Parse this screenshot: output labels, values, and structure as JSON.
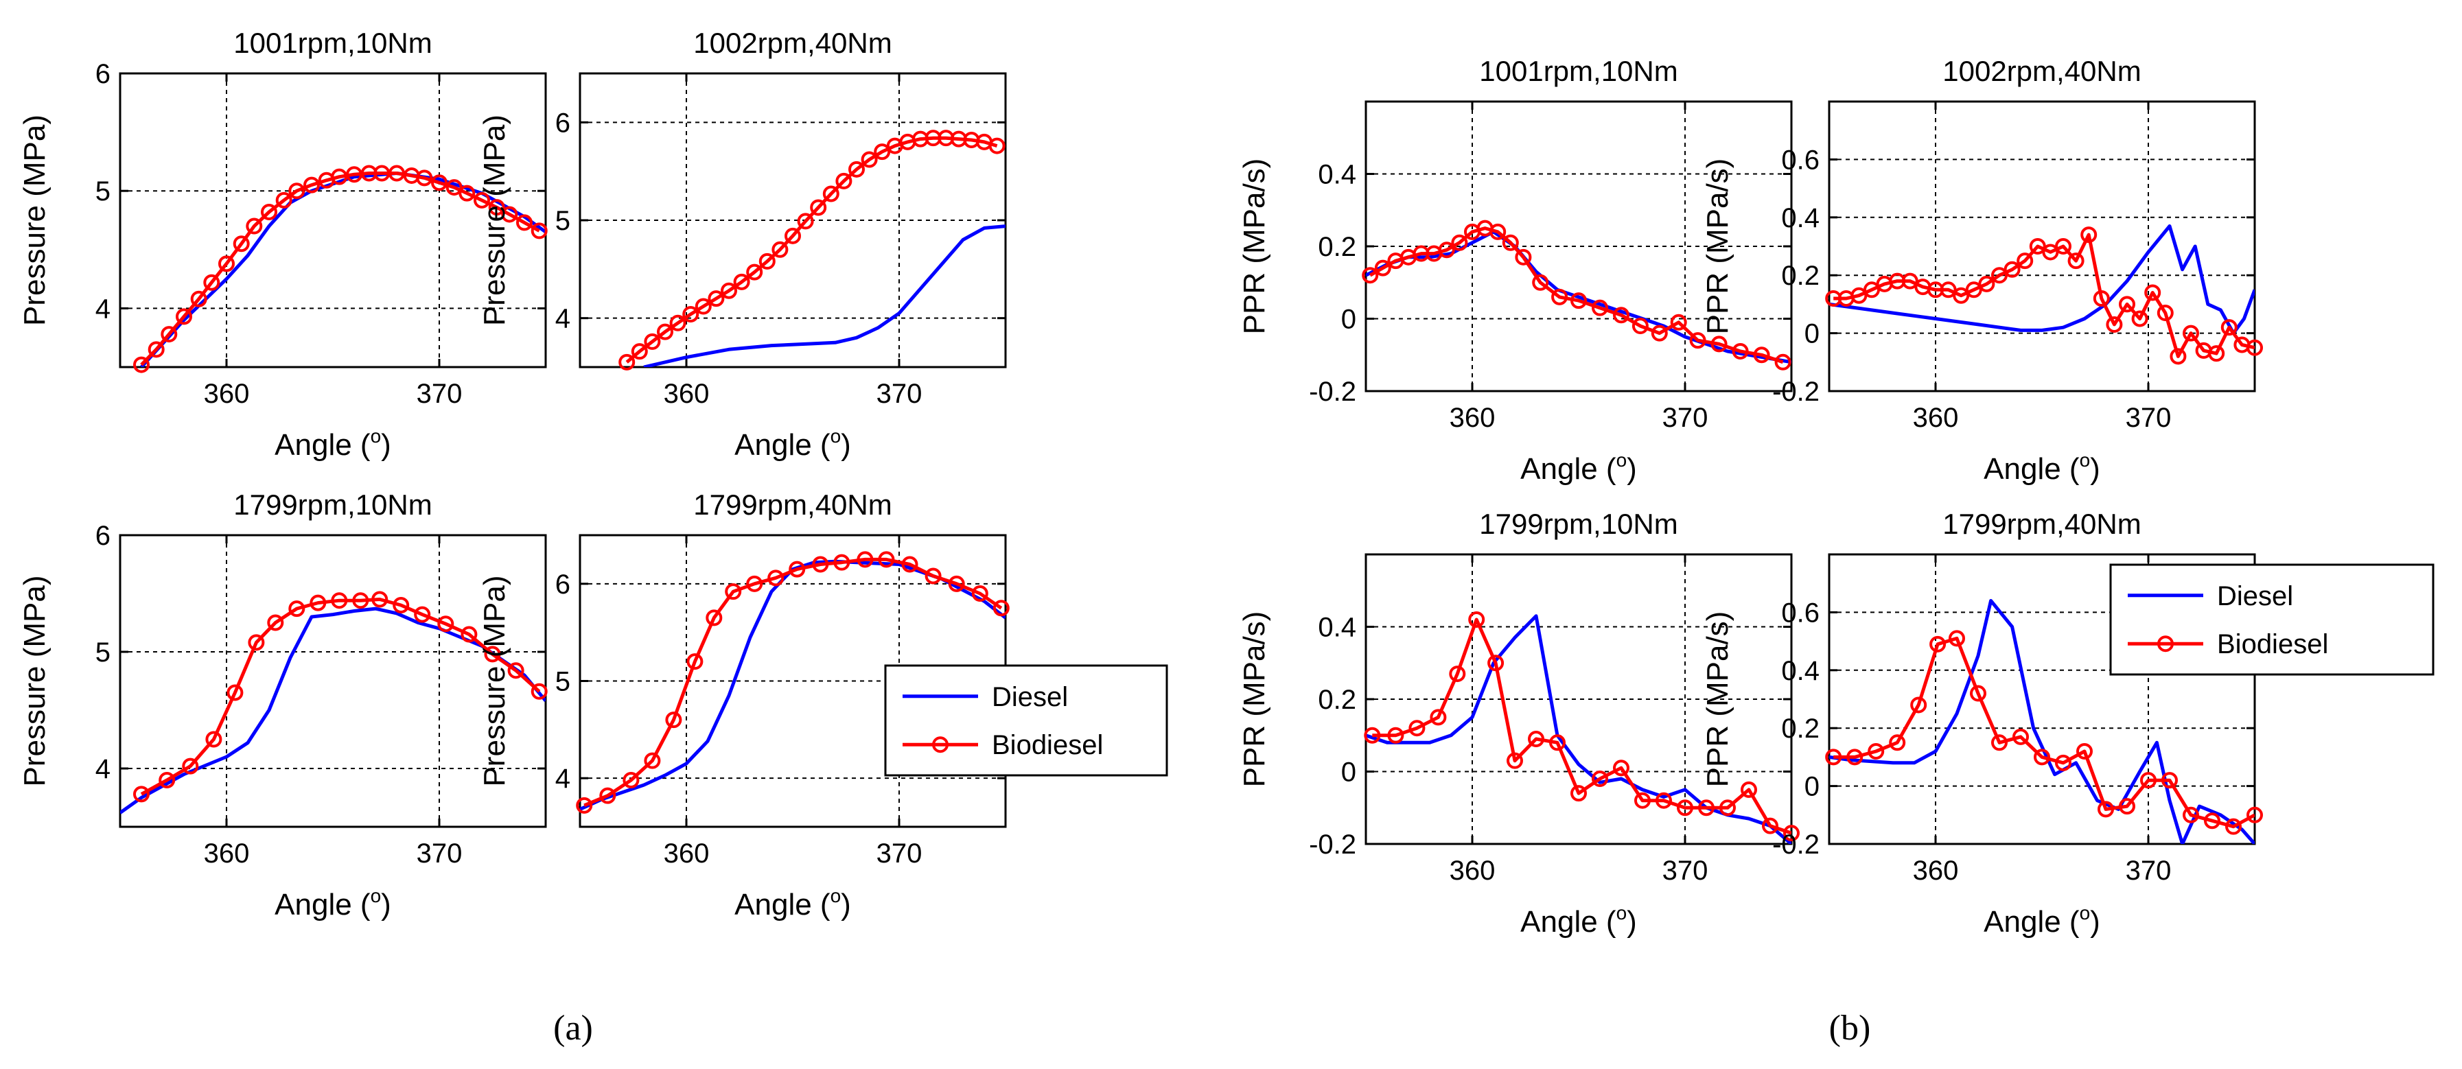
{
  "colors": {
    "diesel": "#0000ff",
    "biodiesel": "#ff0000",
    "grid": "#000000"
  },
  "figure_labels": {
    "a": "(a)",
    "b": "(b)"
  },
  "legend": {
    "diesel": "Diesel",
    "biodiesel": "Biodiesel"
  },
  "chart_data": [
    {
      "id": "a1",
      "type": "line",
      "title": "1001rpm,10Nm",
      "xlabel": "Angle",
      "xlabel_sup": "o",
      "ylabel": "Pressure (MPa)",
      "xlim": [
        355,
        375
      ],
      "ylim": [
        3.5,
        6
      ],
      "xticks": [
        360,
        370
      ],
      "yticks": [
        4,
        5,
        6
      ],
      "ygrid": [
        4,
        5,
        6
      ],
      "xgrid": [
        360,
        370
      ],
      "series": [
        {
          "name": "Diesel",
          "x": [
            356,
            358,
            360,
            361,
            362,
            363,
            364,
            366,
            368,
            370,
            372,
            374,
            375
          ],
          "y": [
            3.5,
            3.9,
            4.25,
            4.45,
            4.7,
            4.9,
            5.0,
            5.12,
            5.15,
            5.1,
            4.98,
            4.78,
            4.65
          ]
        },
        {
          "name": "Biodiesel",
          "x": [
            356,
            356.7,
            357.3,
            358,
            358.7,
            359.3,
            360,
            360.7,
            361.3,
            362,
            362.7,
            363.3,
            364,
            364.7,
            365.3,
            366,
            366.7,
            367.3,
            368,
            368.7,
            369.3,
            370,
            370.7,
            371.3,
            372,
            372.7,
            373.3,
            374,
            374.7
          ],
          "y": [
            3.52,
            3.65,
            3.78,
            3.93,
            4.08,
            4.22,
            4.38,
            4.55,
            4.7,
            4.82,
            4.92,
            5.0,
            5.05,
            5.09,
            5.12,
            5.14,
            5.15,
            5.15,
            5.15,
            5.13,
            5.11,
            5.07,
            5.03,
            4.98,
            4.92,
            4.86,
            4.8,
            4.73,
            4.66
          ]
        }
      ]
    },
    {
      "id": "a2",
      "type": "line",
      "title": "1002rpm,40Nm",
      "xlabel": "Angle",
      "xlabel_sup": "o",
      "ylabel": "Pressure (MPa)",
      "xlim": [
        355,
        375
      ],
      "ylim": [
        3.5,
        6.5
      ],
      "xticks": [
        360,
        370
      ],
      "yticks": [
        4,
        5,
        6
      ],
      "ygrid": [
        4,
        5,
        6
      ],
      "xgrid": [
        360,
        370
      ],
      "series": [
        {
          "name": "Diesel",
          "x": [
            358,
            360,
            362,
            364,
            366,
            367,
            368,
            369,
            370,
            371,
            372,
            373,
            374,
            375
          ],
          "y": [
            3.5,
            3.6,
            3.68,
            3.72,
            3.74,
            3.75,
            3.8,
            3.9,
            4.05,
            4.3,
            4.55,
            4.8,
            4.92,
            4.94
          ]
        },
        {
          "name": "Biodiesel",
          "x": [
            357.2,
            357.8,
            358.4,
            359,
            359.6,
            360.2,
            360.8,
            361.4,
            362,
            362.6,
            363.2,
            363.8,
            364.4,
            365,
            365.6,
            366.2,
            366.8,
            367.4,
            368,
            368.6,
            369.2,
            369.8,
            370.4,
            371,
            371.6,
            372.2,
            372.8,
            373.4,
            374,
            374.6
          ],
          "y": [
            3.55,
            3.66,
            3.76,
            3.86,
            3.95,
            4.04,
            4.12,
            4.2,
            4.28,
            4.37,
            4.47,
            4.58,
            4.7,
            4.84,
            4.99,
            5.13,
            5.27,
            5.4,
            5.52,
            5.62,
            5.7,
            5.76,
            5.8,
            5.83,
            5.84,
            5.84,
            5.83,
            5.82,
            5.8,
            5.76
          ]
        }
      ]
    },
    {
      "id": "a3",
      "type": "line",
      "title": "1799rpm,10Nm",
      "xlabel": "Angle",
      "xlabel_sup": "o",
      "ylabel": "Pressure (MPa)",
      "xlim": [
        355,
        375
      ],
      "ylim": [
        3.5,
        6
      ],
      "xticks": [
        360,
        370
      ],
      "yticks": [
        4,
        5,
        6
      ],
      "ygrid": [
        4,
        5,
        6
      ],
      "xgrid": [
        360,
        370
      ],
      "series": [
        {
          "name": "Diesel",
          "x": [
            355,
            356,
            358,
            360,
            361,
            362,
            363,
            364,
            365,
            366,
            367,
            368,
            369,
            370,
            372,
            374,
            375
          ],
          "y": [
            3.62,
            3.75,
            3.95,
            4.1,
            4.22,
            4.5,
            4.95,
            5.3,
            5.32,
            5.35,
            5.37,
            5.33,
            5.25,
            5.2,
            5.05,
            4.8,
            4.58
          ]
        },
        {
          "name": "Biodiesel",
          "x": [
            356,
            357.2,
            358.3,
            359.4,
            360.4,
            361.4,
            362.3,
            363.3,
            364.3,
            365.3,
            366.3,
            367.2,
            368.2,
            369.2,
            370.3,
            371.4,
            372.5,
            373.6,
            374.7
          ],
          "y": [
            3.78,
            3.9,
            4.02,
            4.25,
            4.65,
            5.08,
            5.25,
            5.37,
            5.42,
            5.44,
            5.44,
            5.45,
            5.4,
            5.32,
            5.24,
            5.15,
            4.98,
            4.84,
            4.66
          ]
        }
      ]
    },
    {
      "id": "a4",
      "type": "line",
      "title": "1799rpm,40Nm",
      "xlabel": "Angle",
      "xlabel_sup": "o",
      "ylabel": "Pressure (MPa)",
      "xlim": [
        355,
        375
      ],
      "ylim": [
        3.5,
        6.5
      ],
      "xticks": [
        360,
        370
      ],
      "yticks": [
        4,
        5,
        6
      ],
      "ygrid": [
        4,
        5,
        6
      ],
      "xgrid": [
        360,
        370
      ],
      "series": [
        {
          "name": "Diesel",
          "x": [
            355,
            356,
            358,
            359,
            360,
            361,
            362,
            363,
            364,
            365,
            366,
            367,
            368,
            370,
            372,
            374,
            375
          ],
          "y": [
            3.68,
            3.78,
            3.93,
            4.03,
            4.15,
            4.38,
            4.85,
            5.45,
            5.92,
            6.15,
            6.22,
            6.23,
            6.22,
            6.2,
            6.05,
            5.82,
            5.65
          ]
        },
        {
          "name": "Biodiesel",
          "x": [
            355.2,
            356.3,
            357.4,
            358.4,
            359.4,
            360.4,
            361.3,
            362.2,
            363.2,
            364.2,
            365.2,
            366.3,
            367.3,
            368.4,
            369.4,
            370.5,
            371.6,
            372.7,
            373.8,
            374.8
          ],
          "y": [
            3.72,
            3.82,
            3.98,
            4.18,
            4.6,
            5.2,
            5.65,
            5.92,
            6.0,
            6.06,
            6.15,
            6.2,
            6.22,
            6.25,
            6.25,
            6.2,
            6.08,
            6.0,
            5.9,
            5.75
          ]
        }
      ]
    },
    {
      "id": "b1",
      "type": "line",
      "title": "1001rpm,10Nm",
      "xlabel": "Angle",
      "xlabel_sup": "o",
      "ylabel": "PPR (MPa/s)",
      "xlim": [
        355,
        375
      ],
      "ylim": [
        -0.2,
        0.6
      ],
      "xticks": [
        360,
        370
      ],
      "yticks": [
        -0.2,
        0,
        0.2,
        0.4
      ],
      "ytick_labels": [
        "-0.2",
        "0",
        "0.2",
        "0.4"
      ],
      "ygrid": [
        0,
        0.2,
        0.4
      ],
      "xgrid": [
        360,
        370
      ],
      "series": [
        {
          "name": "Diesel",
          "x": [
            355,
            356,
            357,
            358,
            359,
            360,
            361,
            362,
            363,
            364,
            365,
            366,
            367,
            368,
            369,
            370,
            371,
            372,
            373,
            374,
            375
          ],
          "y": [
            0.12,
            0.15,
            0.17,
            0.17,
            0.18,
            0.21,
            0.24,
            0.2,
            0.13,
            0.08,
            0.06,
            0.04,
            0.02,
            0.0,
            -0.02,
            -0.05,
            -0.07,
            -0.09,
            -0.1,
            -0.11,
            -0.12
          ]
        },
        {
          "name": "Biodiesel",
          "x": [
            355.2,
            355.8,
            356.4,
            357,
            357.6,
            358.2,
            358.8,
            359.4,
            360,
            360.6,
            361.2,
            361.8,
            362.4,
            363.2,
            364.1,
            365,
            366,
            367,
            367.9,
            368.8,
            369.7,
            370.6,
            371.6,
            372.6,
            373.6,
            374.6
          ],
          "y": [
            0.12,
            0.14,
            0.16,
            0.17,
            0.18,
            0.18,
            0.19,
            0.21,
            0.24,
            0.25,
            0.24,
            0.21,
            0.17,
            0.1,
            0.06,
            0.05,
            0.03,
            0.01,
            -0.02,
            -0.04,
            -0.01,
            -0.06,
            -0.07,
            -0.09,
            -0.1,
            -0.12
          ]
        }
      ]
    },
    {
      "id": "b2",
      "type": "line",
      "title": "1002rpm,40Nm",
      "xlabel": "Angle",
      "xlabel_sup": "o",
      "ylabel": "PPR (MPa/s)",
      "xlim": [
        355,
        375
      ],
      "ylim": [
        -0.2,
        0.8
      ],
      "xticks": [
        360,
        370
      ],
      "yticks": [
        -0.2,
        0,
        0.2,
        0.4,
        0.6
      ],
      "ytick_labels": [
        "-0.2",
        "0",
        "0.2",
        "0.4",
        "0.6"
      ],
      "ygrid": [
        0,
        0.2,
        0.4,
        0.6
      ],
      "xgrid": [
        360,
        370
      ],
      "series": [
        {
          "name": "Diesel",
          "x": [
            355,
            356,
            358,
            360,
            362,
            364,
            365,
            366,
            367,
            368,
            369,
            370,
            371,
            371.6,
            372.2,
            372.8,
            373.4,
            374,
            374.5,
            375
          ],
          "y": [
            0.1,
            0.09,
            0.07,
            0.05,
            0.03,
            0.01,
            0.01,
            0.02,
            0.05,
            0.1,
            0.18,
            0.28,
            0.37,
            0.22,
            0.3,
            0.1,
            0.08,
            0.0,
            0.05,
            0.15
          ]
        },
        {
          "name": "Biodiesel",
          "x": [
            355.2,
            355.8,
            356.4,
            357,
            357.6,
            358.2,
            358.8,
            359.4,
            360,
            360.6,
            361.2,
            361.8,
            362.4,
            363,
            363.6,
            364.2,
            364.8,
            365.4,
            366,
            366.6,
            367.2,
            367.8,
            368.4,
            369,
            369.6,
            370.2,
            370.8,
            371.4,
            372,
            372.6,
            373.2,
            373.8,
            374.4,
            375
          ],
          "y": [
            0.12,
            0.12,
            0.13,
            0.15,
            0.17,
            0.18,
            0.18,
            0.16,
            0.15,
            0.15,
            0.13,
            0.15,
            0.17,
            0.2,
            0.22,
            0.25,
            0.3,
            0.28,
            0.3,
            0.25,
            0.34,
            0.12,
            0.03,
            0.1,
            0.05,
            0.14,
            0.07,
            -0.08,
            0.0,
            -0.06,
            -0.07,
            0.02,
            -0.04,
            -0.05
          ]
        }
      ]
    },
    {
      "id": "b3",
      "type": "line",
      "title": "1799rpm,10Nm",
      "xlabel": "Angle",
      "xlabel_sup": "o",
      "ylabel": "PPR (MPa/s)",
      "xlim": [
        355,
        375
      ],
      "ylim": [
        -0.2,
        0.6
      ],
      "xticks": [
        360,
        370
      ],
      "yticks": [
        -0.2,
        0,
        0.2,
        0.4
      ],
      "ytick_labels": [
        "-0.2",
        "0",
        "0.2",
        "0.4"
      ],
      "ygrid": [
        0,
        0.2,
        0.4
      ],
      "xgrid": [
        360,
        370
      ],
      "series": [
        {
          "name": "Diesel",
          "x": [
            355,
            356,
            358,
            359,
            360,
            361,
            362,
            363,
            364,
            365,
            366,
            367,
            368,
            369,
            370,
            371,
            372,
            373,
            374,
            375
          ],
          "y": [
            0.1,
            0.08,
            0.08,
            0.1,
            0.15,
            0.3,
            0.37,
            0.43,
            0.1,
            0.02,
            -0.03,
            -0.02,
            -0.05,
            -0.07,
            -0.05,
            -0.1,
            -0.12,
            -0.13,
            -0.15,
            -0.2
          ]
        },
        {
          "name": "Biodiesel",
          "x": [
            355.3,
            356.4,
            357.4,
            358.4,
            359.3,
            360.2,
            361.1,
            362,
            363,
            364,
            365,
            366,
            367,
            368,
            369,
            370,
            371,
            372,
            373,
            374,
            375
          ],
          "y": [
            0.1,
            0.1,
            0.12,
            0.15,
            0.27,
            0.42,
            0.3,
            0.03,
            0.09,
            0.08,
            -0.06,
            -0.02,
            0.01,
            -0.08,
            -0.08,
            -0.1,
            -0.1,
            -0.1,
            -0.05,
            -0.15,
            -0.17
          ]
        }
      ]
    },
    {
      "id": "b4",
      "type": "line",
      "title": "1799rpm,40Nm",
      "xlabel": "Angle",
      "xlabel_sup": "o",
      "ylabel": "PPR (MPa/s)",
      "xlim": [
        355,
        375
      ],
      "ylim": [
        -0.2,
        0.8
      ],
      "xticks": [
        360,
        370
      ],
      "yticks": [
        -0.2,
        0,
        0.2,
        0.4,
        0.6
      ],
      "ytick_labels": [
        "-0.2",
        "0",
        "0.2",
        "0.4",
        "0.6"
      ],
      "ygrid": [
        0,
        0.2,
        0.4,
        0.6
      ],
      "xgrid": [
        360,
        370
      ],
      "series": [
        {
          "name": "Diesel",
          "x": [
            355,
            356,
            358,
            359,
            360,
            361,
            362,
            362.6,
            363.6,
            364.6,
            365.6,
            366.6,
            367.6,
            368.6,
            369.6,
            370.4,
            371,
            371.6,
            372.4,
            373.4,
            374.4,
            375
          ],
          "y": [
            0.1,
            0.09,
            0.08,
            0.08,
            0.12,
            0.25,
            0.45,
            0.64,
            0.55,
            0.2,
            0.04,
            0.08,
            -0.05,
            -0.08,
            0.05,
            0.15,
            -0.05,
            -0.2,
            -0.07,
            -0.1,
            -0.15,
            -0.2
          ]
        },
        {
          "name": "Biodiesel",
          "x": [
            355.2,
            356.2,
            357.2,
            358.2,
            359.2,
            360.1,
            361,
            362,
            363,
            364,
            365,
            366,
            367,
            368,
            369,
            370,
            371,
            372,
            373,
            374,
            375
          ],
          "y": [
            0.1,
            0.1,
            0.12,
            0.15,
            0.28,
            0.49,
            0.51,
            0.32,
            0.15,
            0.17,
            0.1,
            0.08,
            0.12,
            -0.08,
            -0.07,
            0.02,
            0.02,
            -0.1,
            -0.12,
            -0.14,
            -0.1
          ]
        }
      ]
    }
  ]
}
